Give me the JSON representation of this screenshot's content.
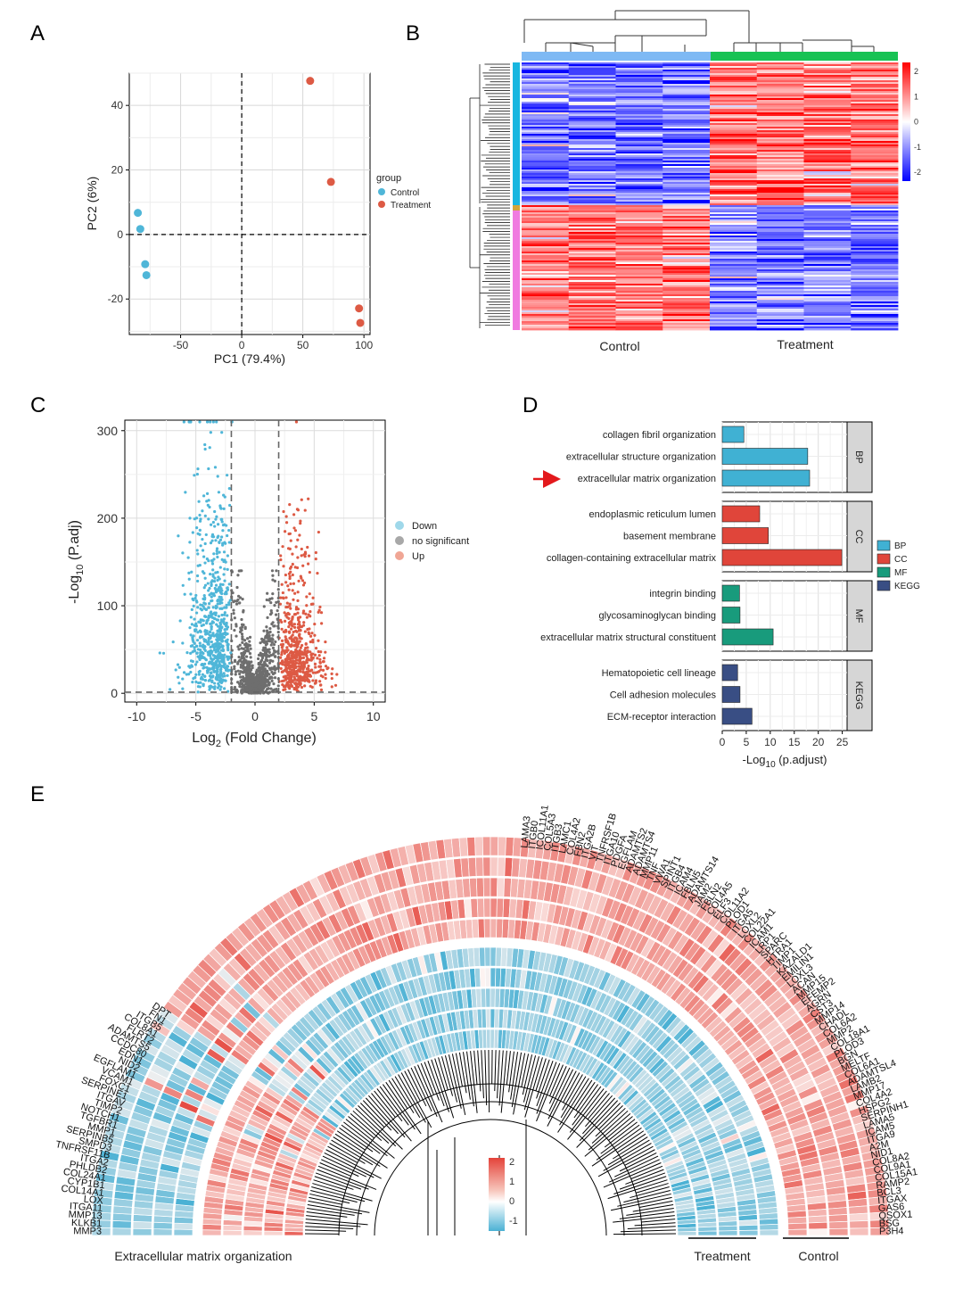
{
  "panels": {
    "a": "A",
    "b": "B",
    "c": "C",
    "d": "D",
    "e": "E"
  },
  "colors": {
    "control": "#4fb6d8",
    "treatment": "#dd5a44",
    "ns": "#6e6e6e",
    "bp": "#40b1d3",
    "cc": "#e0453a",
    "mf": "#189b7c",
    "kegg": "#394e84",
    "bar_control": "#7eb9f4",
    "bar_treatment": "#18c254",
    "branch_up": "#18b6e0",
    "branch_down": "#f07be0"
  },
  "chart_data": [
    {
      "type": "scatter",
      "panel": "A",
      "xlabel": "PC1 (79.4%)",
      "ylabel": "PC2 (6%)",
      "xlim": [
        -92,
        105
      ],
      "ylim": [
        -31,
        50
      ],
      "xticks": [
        "-50",
        "0",
        "50",
        "100"
      ],
      "yticks": [
        "-20",
        "0",
        "20",
        "40"
      ],
      "legend_title": "group",
      "series": [
        {
          "name": "Control",
          "points": [
            [
              -85,
              6.7
            ],
            [
              -83,
              1.7
            ],
            [
              -79,
              -9.2
            ],
            [
              -78,
              -12.6
            ]
          ]
        },
        {
          "name": "Treatment",
          "points": [
            [
              56,
              47.6
            ],
            [
              73,
              16.3
            ],
            [
              96,
              -22.9
            ],
            [
              97,
              -27.4
            ]
          ]
        }
      ],
      "grid": true,
      "legend": "right"
    },
    {
      "type": "heatmap",
      "panel": "B",
      "columns": [
        {
          "name": "Control",
          "count": 4
        },
        {
          "name": "Treatment",
          "count": 4
        }
      ],
      "legend_ticks": [
        "2",
        "1",
        "0",
        "-1",
        "-2"
      ],
      "blocks": [
        "up in Treatment",
        "down in Treatment"
      ],
      "legend": "right"
    },
    {
      "type": "scatter",
      "panel": "C",
      "xlabel_main": "Log",
      "xlabel_sub": "2",
      "xlabel_rest": " (Fold Change)",
      "ylabel_main": "-Log",
      "ylabel_sub": "10",
      "ylabel_rest": " (P.adj)",
      "xlim": [
        -11,
        11
      ],
      "ylim": [
        -10,
        312
      ],
      "xticks": [
        "-10",
        "-5",
        "0",
        "5",
        "10"
      ],
      "yticks": [
        "0",
        "100",
        "200",
        "300"
      ],
      "vlines": [
        -2,
        2
      ],
      "hline": 1.3,
      "series": [
        {
          "name": "Down"
        },
        {
          "name": "no significant"
        },
        {
          "name": "Up"
        }
      ],
      "grid": true,
      "legend": "right"
    },
    {
      "type": "bar",
      "panel": "D",
      "orientation": "horizontal",
      "xlabel_main": "-Log",
      "xlabel_sub": "10",
      "xlabel_rest": " (p.adjust)",
      "xlim": [
        0,
        26
      ],
      "xticks": [
        "0",
        "5",
        "10",
        "15",
        "20",
        "25"
      ],
      "groups": [
        {
          "name": "BP",
          "categories": [
            "collagen fibril organization",
            "extracellular structure organization",
            "extracellular matrix organization"
          ],
          "values": [
            4.5,
            17.8,
            18.2
          ]
        },
        {
          "name": "CC",
          "categories": [
            "endoplasmic reticulum lumen",
            "basement membrane",
            "collagen-containing extracellular matrix"
          ],
          "values": [
            7.8,
            9.6,
            24.9
          ]
        },
        {
          "name": "MF",
          "categories": [
            "integrin binding",
            "glycosaminoglycan binding",
            "extracellular matrix structural constituent"
          ],
          "values": [
            3.6,
            3.7,
            10.6
          ]
        },
        {
          "name": "KEGG",
          "categories": [
            "Hematopoietic cell lineage",
            "Cell adhesion molecules",
            "ECM-receptor interaction"
          ],
          "values": [
            3.2,
            3.7,
            6.2
          ]
        }
      ],
      "highlight": "extracellular matrix organization",
      "legend": "right"
    },
    {
      "type": "heatmap",
      "panel": "E",
      "layout": "circular",
      "title": "Extracellular matrix organization",
      "tracks": [
        {
          "name": "Treatment"
        },
        {
          "name": "Control"
        }
      ],
      "legend_ticks": [
        "2",
        "1",
        "0",
        "-1"
      ],
      "genes_up": [
        "P3H4",
        "BSG",
        "QSOX1",
        "GAS6",
        "ITGAX",
        "BCL3",
        "RAMP2",
        "COL15A1",
        "COL9A1",
        "COL8A2",
        "NID1",
        "A2M",
        "ITGA9",
        "ICAM5",
        "LAMA5",
        "SERPINH1",
        "HSPG2",
        "COL4A2",
        "MMP17",
        "LAMB2",
        "ADAMTSL4",
        "COL6A1",
        "MELTF",
        "BGN",
        "PLOD3",
        "COL18A1",
        "MMP2",
        "COL6A2",
        "CHADL",
        "MMP14",
        "CST3",
        "AGRN",
        "EFEMP2",
        "MMP15",
        "ACAN",
        "LOXL3",
        "EMILIN1",
        "KAZALD1",
        "TIMP1",
        "HTRA1",
        "SPARC",
        "LRP1",
        "ICAM1",
        "COL22A1",
        "LOXL2",
        "ITGA5",
        "PLOD1",
        "COL11A2",
        "ELF3",
        "COL4A5",
        "FBLN2",
        "JAM2",
        "ADAMTS14",
        "FBLN5",
        "ICAM4",
        "ITGB4",
        "SPINT1",
        "VWA1",
        "TNF",
        "MMP11",
        "ADAMTS4",
        "ADAMTS2",
        "EGFLAM",
        "PDGFA",
        "ITGA10",
        "TNFRSF1B",
        "VIT",
        "ITGA2B",
        "FBN2",
        "COL4A2",
        "LAMC1",
        "ITGB3",
        "COL5A3",
        "ICOL11A1",
        "ITGB0",
        "LAMA3"
      ],
      "genes_down": [
        "MMP3",
        "KLKB1",
        "MMP13",
        "ITGA11",
        "LOX",
        "COL14A1",
        "CYP1B1",
        "COL24A1",
        "PHLDB2",
        "ITGA2",
        "TNFRSF11B",
        "SMPD3",
        "SERPINB5",
        "MMP1",
        "TGFBR1",
        "NOTCH1",
        "TIMP2",
        "ITGAV",
        "SERPINE1",
        "FOXC1",
        "VCAM1",
        "EGFLAM1",
        "NID2",
        "EDN1",
        "CCDC80",
        "ADAMTS5",
        "FLRT2",
        "COL8A1",
        "ITGB5",
        "FN1",
        "DPT"
      ]
    }
  ]
}
